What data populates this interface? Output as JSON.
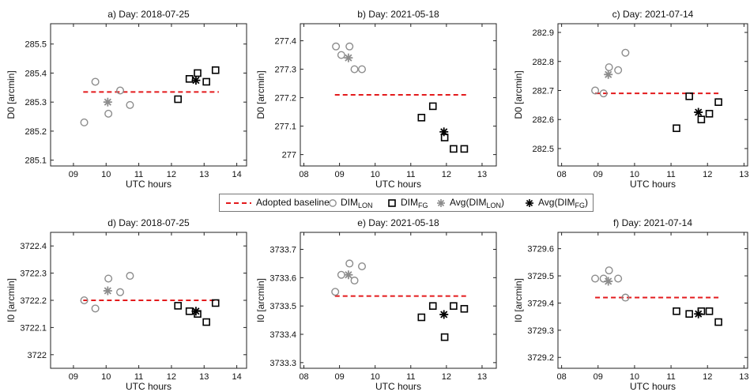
{
  "legend": {
    "baseline": "Adopted baseline",
    "dimlon_main": "DIM",
    "dimlon_sub": "LON",
    "dimfg_main": "DIM",
    "dimfg_sub": "FG",
    "avglon_main": "Avg(DIM",
    "avglon_sub": "LON",
    "avglon_end": ")",
    "avgfg_main": "Avg(DIM",
    "avgfg_sub": "FG",
    "avgfg_end": ")"
  },
  "colors": {
    "baseline": "#e31a1c",
    "lon": "#8c8c8c",
    "fg": "#000000"
  },
  "chart_data": [
    {
      "type": "scatter",
      "title": "a) Day: 2018-07-25",
      "xlabel": "UTC hours",
      "ylabel": "D0 [arcmin]",
      "xlim": [
        8.3,
        14.3
      ],
      "ylim": [
        285.08,
        285.57
      ],
      "xticks": [
        "09",
        "10",
        "11",
        "12",
        "13",
        "14"
      ],
      "xtick_values": [
        9,
        10,
        11,
        12,
        13,
        14
      ],
      "yticks": [
        "285.1",
        "285.2",
        "285.3",
        "285.4",
        "285.5"
      ],
      "ytick_values": [
        285.1,
        285.2,
        285.3,
        285.4,
        285.5
      ],
      "baseline": {
        "value": 285.335,
        "x": [
          9.3,
          13.45
        ]
      },
      "dim_lon": [
        [
          9.33,
          285.23
        ],
        [
          9.67,
          285.37
        ],
        [
          10.07,
          285.26
        ],
        [
          10.43,
          285.34
        ],
        [
          10.73,
          285.29
        ]
      ],
      "dim_fg": [
        [
          12.2,
          285.31
        ],
        [
          12.55,
          285.38
        ],
        [
          12.8,
          285.4
        ],
        [
          13.07,
          285.37
        ],
        [
          13.35,
          285.41
        ]
      ],
      "avg_lon": [
        10.05,
        285.3
      ],
      "avg_fg": [
        12.75,
        285.375
      ]
    },
    {
      "type": "scatter",
      "title": "b) Day: 2021-05-18",
      "xlabel": "UTC hours",
      "ylabel": "D0 [arcmin]",
      "xlim": [
        7.9,
        13.4
      ],
      "ylim": [
        276.96,
        277.46
      ],
      "xticks": [
        "08",
        "09",
        "10",
        "11",
        "12",
        "13"
      ],
      "xtick_values": [
        8,
        9,
        10,
        11,
        12,
        13
      ],
      "yticks": [
        "277",
        "277.1",
        "277.2",
        "277.3",
        "277.4"
      ],
      "ytick_values": [
        277,
        277.1,
        277.2,
        277.3,
        277.4
      ],
      "baseline": {
        "value": 277.21,
        "x": [
          8.87,
          12.6
        ]
      },
      "dim_lon": [
        [
          8.9,
          277.38
        ],
        [
          9.05,
          277.35
        ],
        [
          9.28,
          277.38
        ],
        [
          9.42,
          277.3
        ],
        [
          9.63,
          277.3
        ]
      ],
      "dim_fg": [
        [
          11.3,
          277.13
        ],
        [
          11.62,
          277.17
        ],
        [
          11.95,
          277.06
        ],
        [
          12.2,
          277.02
        ],
        [
          12.5,
          277.02
        ]
      ],
      "avg_lon": [
        9.25,
        277.34
      ],
      "avg_fg": [
        11.93,
        277.08
      ]
    },
    {
      "type": "scatter",
      "title": "c) Day: 2021-07-14",
      "xlabel": "UTC hours",
      "ylabel": "D0 [arcmin]",
      "xlim": [
        7.9,
        13.1
      ],
      "ylim": [
        282.44,
        282.93
      ],
      "xticks": [
        "08",
        "09",
        "10",
        "11",
        "12",
        "13"
      ],
      "xtick_values": [
        8,
        9,
        10,
        11,
        12,
        13
      ],
      "yticks": [
        "282.5",
        "282.6",
        "282.7",
        "282.8",
        "282.9"
      ],
      "ytick_values": [
        282.5,
        282.6,
        282.7,
        282.8,
        282.9
      ],
      "baseline": {
        "value": 282.69,
        "x": [
          8.92,
          12.35
        ]
      },
      "dim_lon": [
        [
          8.92,
          282.7
        ],
        [
          9.15,
          282.69
        ],
        [
          9.3,
          282.78
        ],
        [
          9.55,
          282.77
        ],
        [
          9.75,
          282.83
        ]
      ],
      "dim_fg": [
        [
          11.15,
          282.57
        ],
        [
          11.5,
          282.68
        ],
        [
          11.83,
          282.6
        ],
        [
          12.05,
          282.62
        ],
        [
          12.3,
          282.66
        ]
      ],
      "avg_lon": [
        9.28,
        282.755
      ],
      "avg_fg": [
        11.75,
        282.625
      ]
    },
    {
      "type": "scatter",
      "title": "d) Day: 2018-07-25",
      "xlabel": "UTC hours",
      "ylabel": "I0 [arcmin]",
      "xlim": [
        8.3,
        14.3
      ],
      "ylim": [
        3721.95,
        3722.45
      ],
      "xticks": [
        "09",
        "10",
        "11",
        "12",
        "13",
        "14"
      ],
      "xtick_values": [
        9,
        10,
        11,
        12,
        13,
        14
      ],
      "yticks": [
        "3722",
        "3722.1",
        "3722.2",
        "3722.3",
        "3722.4"
      ],
      "ytick_values": [
        3722,
        3722.1,
        3722.2,
        3722.3,
        3722.4
      ],
      "baseline": {
        "value": 3722.2,
        "x": [
          9.3,
          13.45
        ]
      },
      "dim_lon": [
        [
          9.33,
          3722.2
        ],
        [
          9.67,
          3722.17
        ],
        [
          10.07,
          3722.28
        ],
        [
          10.43,
          3722.23
        ],
        [
          10.73,
          3722.29
        ]
      ],
      "dim_fg": [
        [
          12.2,
          3722.18
        ],
        [
          12.55,
          3722.16
        ],
        [
          12.8,
          3722.15
        ],
        [
          13.07,
          3722.12
        ],
        [
          13.35,
          3722.19
        ]
      ],
      "avg_lon": [
        10.05,
        3722.235
      ],
      "avg_fg": [
        12.75,
        3722.16
      ]
    },
    {
      "type": "scatter",
      "title": "e) Day: 2021-05-18",
      "xlabel": "UTC hours",
      "ylabel": "I0 [arcmin]",
      "xlim": [
        7.9,
        13.4
      ],
      "ylim": [
        3733.28,
        3733.76
      ],
      "xticks": [
        "08",
        "09",
        "10",
        "11",
        "12",
        "13"
      ],
      "xtick_values": [
        8,
        9,
        10,
        11,
        12,
        13
      ],
      "yticks": [
        "3733.3",
        "3733.4",
        "3733.5",
        "3733.6",
        "3733.7"
      ],
      "ytick_values": [
        3733.3,
        3733.4,
        3733.5,
        3733.6,
        3733.7
      ],
      "baseline": {
        "value": 3733.535,
        "x": [
          8.87,
          12.6
        ]
      },
      "dim_lon": [
        [
          8.88,
          3733.55
        ],
        [
          9.05,
          3733.61
        ],
        [
          9.28,
          3733.65
        ],
        [
          9.42,
          3733.59
        ],
        [
          9.63,
          3733.64
        ]
      ],
      "dim_fg": [
        [
          11.3,
          3733.46
        ],
        [
          11.62,
          3733.5
        ],
        [
          11.95,
          3733.39
        ],
        [
          12.2,
          3733.5
        ],
        [
          12.5,
          3733.49
        ]
      ],
      "avg_lon": [
        9.25,
        3733.61
      ],
      "avg_fg": [
        11.93,
        3733.47
      ]
    },
    {
      "type": "scatter",
      "title": "f) Day: 2021-07-14",
      "xlabel": "UTC hours",
      "ylabel": "I0 [arcmin]",
      "xlim": [
        7.9,
        13.1
      ],
      "ylim": [
        3729.16,
        3729.66
      ],
      "xticks": [
        "08",
        "09",
        "10",
        "11",
        "12",
        "13"
      ],
      "xtick_values": [
        8,
        9,
        10,
        11,
        12,
        13
      ],
      "yticks": [
        "3729.2",
        "3729.3",
        "3729.4",
        "3729.5",
        "3729.6"
      ],
      "ytick_values": [
        3729.2,
        3729.3,
        3729.4,
        3729.5,
        3729.6
      ],
      "baseline": {
        "value": 3729.42,
        "x": [
          8.92,
          12.35
        ]
      },
      "dim_lon": [
        [
          8.92,
          3729.49
        ],
        [
          9.15,
          3729.49
        ],
        [
          9.3,
          3729.52
        ],
        [
          9.55,
          3729.49
        ],
        [
          9.75,
          3729.42
        ]
      ],
      "dim_fg": [
        [
          11.15,
          3729.37
        ],
        [
          11.5,
          3729.36
        ],
        [
          11.83,
          3729.37
        ],
        [
          12.05,
          3729.37
        ],
        [
          12.3,
          3729.33
        ]
      ],
      "avg_lon": [
        9.28,
        3729.48
      ],
      "avg_fg": [
        11.75,
        3729.36
      ]
    }
  ]
}
